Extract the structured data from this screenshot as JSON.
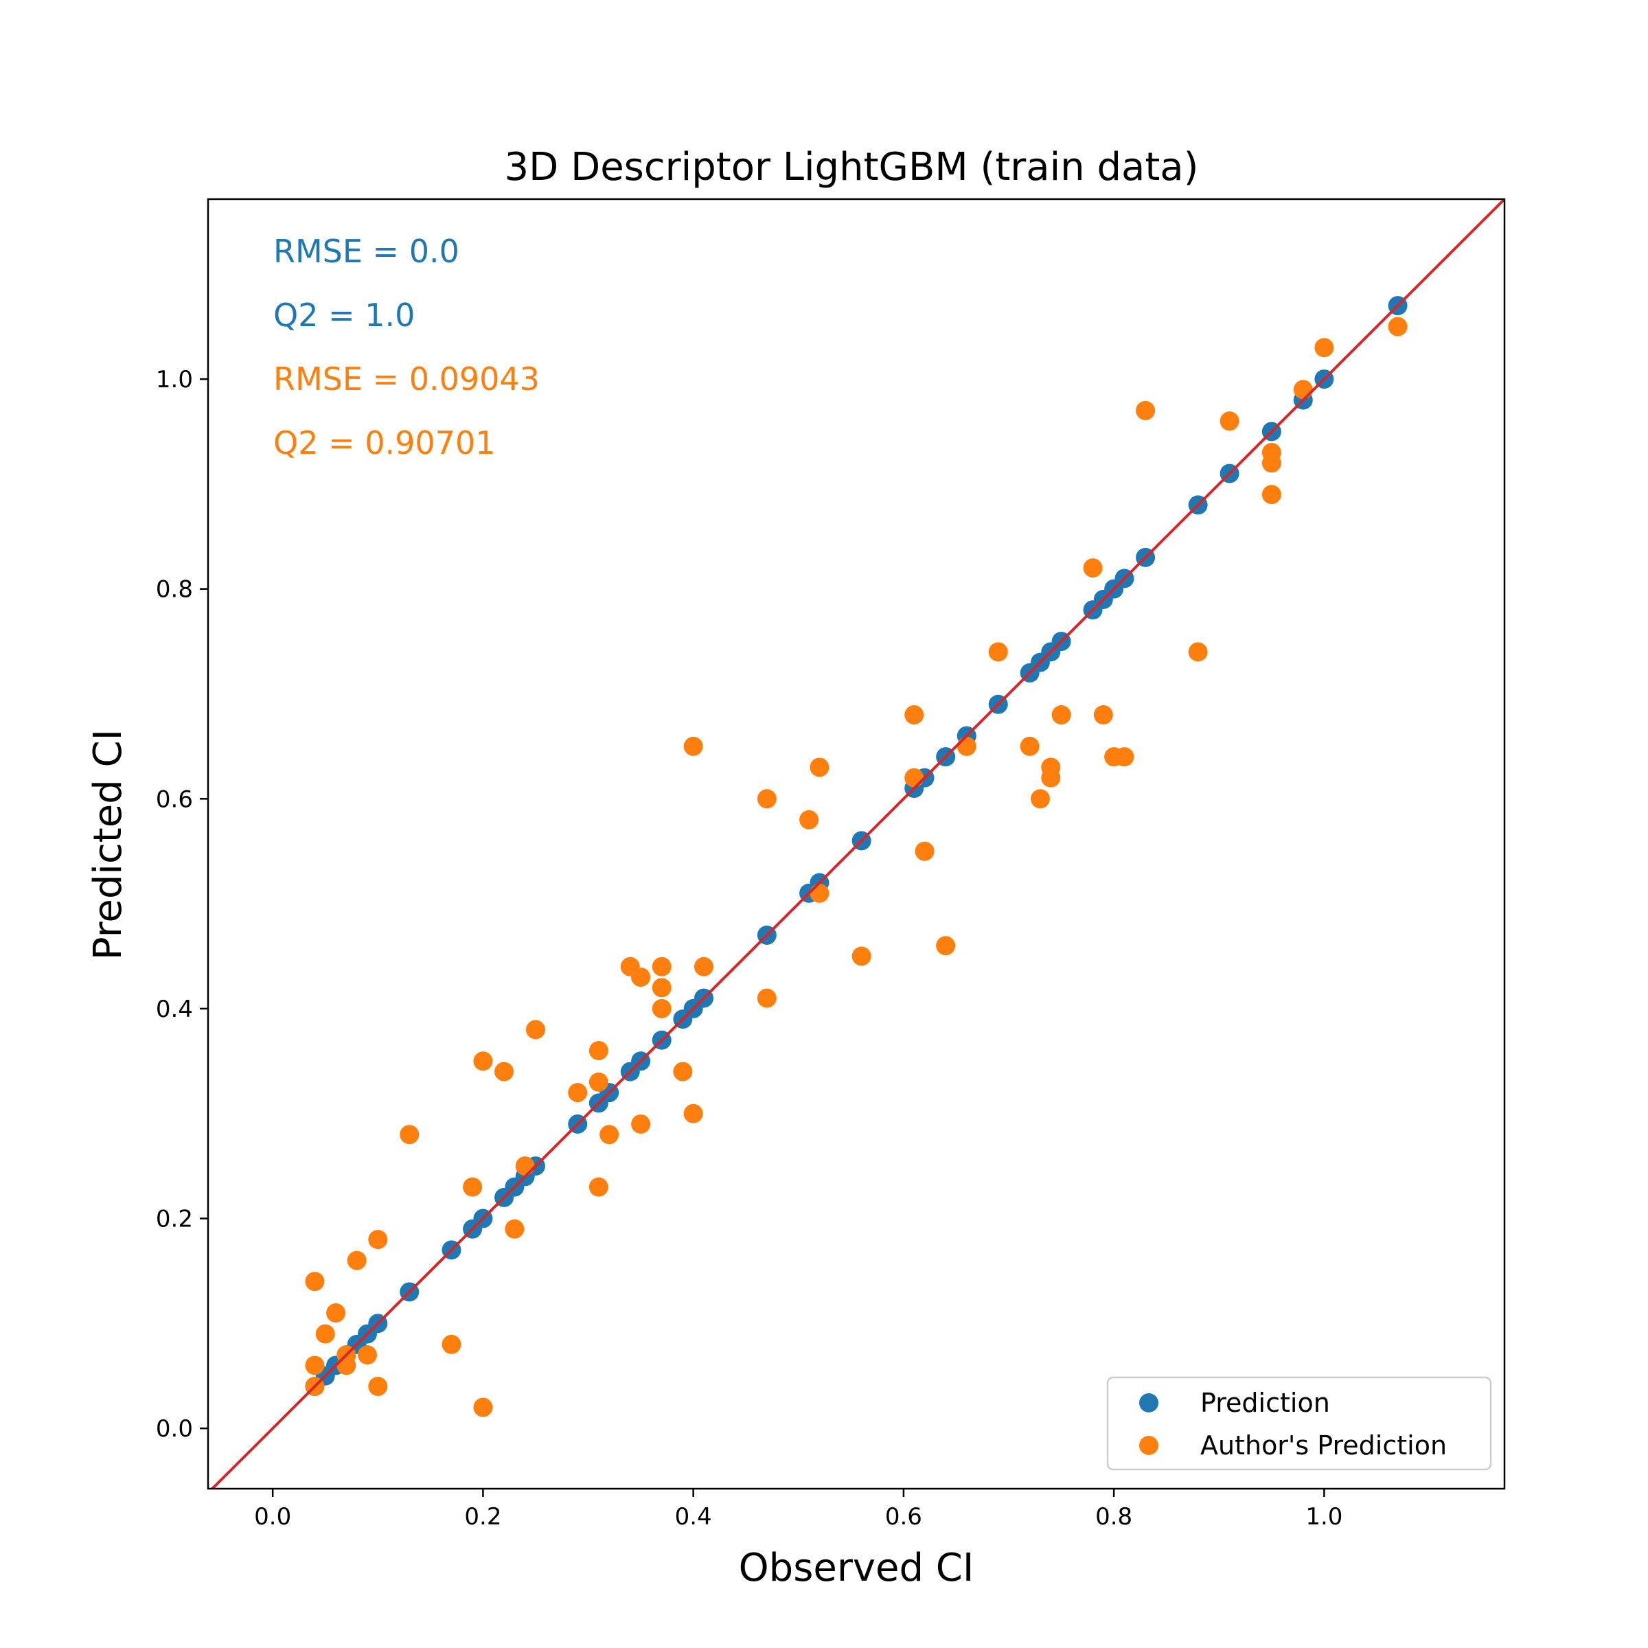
{
  "chart_data": {
    "type": "scatter",
    "title": "3D Descriptor LightGBM (train data)",
    "xlabel": "Observed CI",
    "ylabel": "Predicted CI",
    "xlim": [
      -0.0615,
      1.1715
    ],
    "ylim": [
      -0.0575,
      1.1715
    ],
    "xticks": [
      "0.0",
      "0.2",
      "0.4",
      "0.6",
      "0.8",
      "1.0"
    ],
    "yticks": [
      "0.0",
      "0.2",
      "0.4",
      "0.6",
      "0.8",
      "1.0"
    ],
    "grid": false,
    "legend_position": "lower-right",
    "identity_line": {
      "color": "#d62728"
    },
    "annotations": [
      {
        "text": "RMSE = 0.0",
        "color": "#1f77b4"
      },
      {
        "text": "Q2 = 1.0",
        "color": "#1f77b4"
      },
      {
        "text": "RMSE = 0.09043",
        "color": "#ff7f0e"
      },
      {
        "text": "Q2 = 0.90701",
        "color": "#ff7f0e"
      }
    ],
    "series": [
      {
        "name": "Prediction",
        "color": "#1f77b4",
        "points": [
          [
            0.04,
            0.04
          ],
          [
            0.05,
            0.05
          ],
          [
            0.06,
            0.06
          ],
          [
            0.07,
            0.07
          ],
          [
            0.08,
            0.08
          ],
          [
            0.09,
            0.09
          ],
          [
            0.1,
            0.1
          ],
          [
            0.13,
            0.13
          ],
          [
            0.17,
            0.17
          ],
          [
            0.19,
            0.19
          ],
          [
            0.2,
            0.2
          ],
          [
            0.22,
            0.22
          ],
          [
            0.23,
            0.23
          ],
          [
            0.24,
            0.24
          ],
          [
            0.25,
            0.25
          ],
          [
            0.29,
            0.29
          ],
          [
            0.31,
            0.31
          ],
          [
            0.32,
            0.32
          ],
          [
            0.34,
            0.34
          ],
          [
            0.35,
            0.35
          ],
          [
            0.37,
            0.37
          ],
          [
            0.39,
            0.39
          ],
          [
            0.4,
            0.4
          ],
          [
            0.41,
            0.41
          ],
          [
            0.47,
            0.47
          ],
          [
            0.51,
            0.51
          ],
          [
            0.52,
            0.52
          ],
          [
            0.56,
            0.56
          ],
          [
            0.61,
            0.61
          ],
          [
            0.62,
            0.62
          ],
          [
            0.64,
            0.64
          ],
          [
            0.66,
            0.66
          ],
          [
            0.69,
            0.69
          ],
          [
            0.72,
            0.72
          ],
          [
            0.73,
            0.73
          ],
          [
            0.74,
            0.74
          ],
          [
            0.75,
            0.75
          ],
          [
            0.78,
            0.78
          ],
          [
            0.79,
            0.79
          ],
          [
            0.8,
            0.8
          ],
          [
            0.81,
            0.81
          ],
          [
            0.83,
            0.83
          ],
          [
            0.88,
            0.88
          ],
          [
            0.91,
            0.91
          ],
          [
            0.95,
            0.95
          ],
          [
            0.98,
            0.98
          ],
          [
            1.0,
            1.0
          ],
          [
            1.07,
            1.07
          ]
        ]
      },
      {
        "name": "Author's Prediction",
        "color": "#ff7f0e",
        "points": [
          [
            0.04,
            0.14
          ],
          [
            0.04,
            0.06
          ],
          [
            0.04,
            0.04
          ],
          [
            0.05,
            0.09
          ],
          [
            0.06,
            0.11
          ],
          [
            0.07,
            0.07
          ],
          [
            0.07,
            0.06
          ],
          [
            0.08,
            0.16
          ],
          [
            0.09,
            0.07
          ],
          [
            0.1,
            0.18
          ],
          [
            0.1,
            0.04
          ],
          [
            0.13,
            0.28
          ],
          [
            0.17,
            0.08
          ],
          [
            0.19,
            0.23
          ],
          [
            0.2,
            0.35
          ],
          [
            0.2,
            0.02
          ],
          [
            0.22,
            0.34
          ],
          [
            0.23,
            0.19
          ],
          [
            0.24,
            0.25
          ],
          [
            0.25,
            0.38
          ],
          [
            0.29,
            0.32
          ],
          [
            0.31,
            0.36
          ],
          [
            0.31,
            0.33
          ],
          [
            0.31,
            0.23
          ],
          [
            0.32,
            0.28
          ],
          [
            0.34,
            0.44
          ],
          [
            0.35,
            0.43
          ],
          [
            0.35,
            0.29
          ],
          [
            0.37,
            0.44
          ],
          [
            0.37,
            0.42
          ],
          [
            0.37,
            0.4
          ],
          [
            0.39,
            0.34
          ],
          [
            0.4,
            0.65
          ],
          [
            0.4,
            0.3
          ],
          [
            0.41,
            0.44
          ],
          [
            0.47,
            0.6
          ],
          [
            0.47,
            0.41
          ],
          [
            0.51,
            0.58
          ],
          [
            0.52,
            0.63
          ],
          [
            0.52,
            0.51
          ],
          [
            0.56,
            0.45
          ],
          [
            0.61,
            0.68
          ],
          [
            0.61,
            0.62
          ],
          [
            0.62,
            0.55
          ],
          [
            0.64,
            0.46
          ],
          [
            0.66,
            0.65
          ],
          [
            0.69,
            0.74
          ],
          [
            0.72,
            0.65
          ],
          [
            0.73,
            0.6
          ],
          [
            0.74,
            0.63
          ],
          [
            0.74,
            0.62
          ],
          [
            0.75,
            0.68
          ],
          [
            0.78,
            0.82
          ],
          [
            0.79,
            0.68
          ],
          [
            0.8,
            0.64
          ],
          [
            0.81,
            0.64
          ],
          [
            0.83,
            0.97
          ],
          [
            0.88,
            0.74
          ],
          [
            0.91,
            0.96
          ],
          [
            0.95,
            0.93
          ],
          [
            0.95,
            0.92
          ],
          [
            0.95,
            0.89
          ],
          [
            0.98,
            0.99
          ],
          [
            1.0,
            1.03
          ],
          [
            1.07,
            1.05
          ]
        ]
      }
    ]
  }
}
